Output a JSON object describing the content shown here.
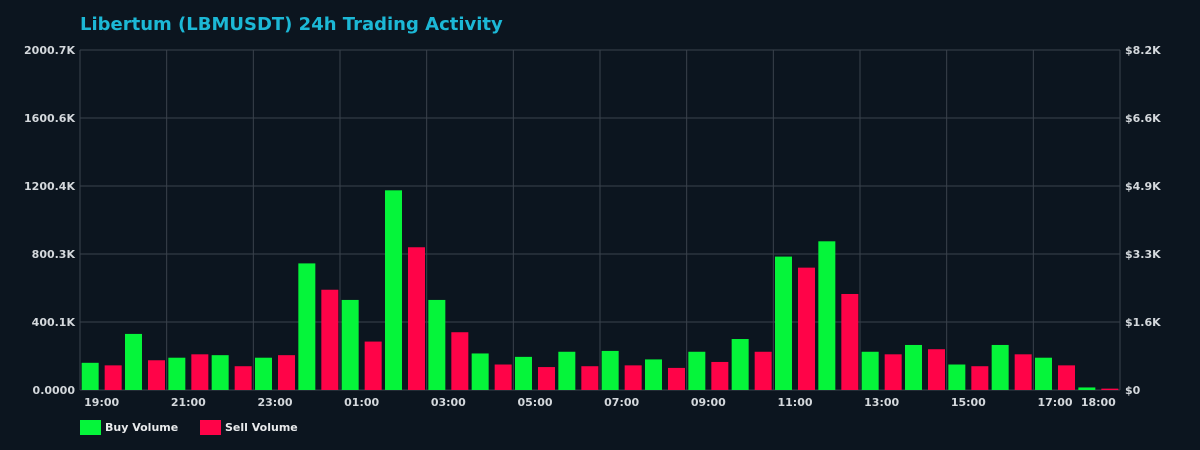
{
  "chart_data": {
    "type": "bar",
    "title": "Libertum (LBMUSDT) 24h Trading Activity",
    "y_left_ticks": [
      "0.0000",
      "400.1K",
      "800.3K",
      "1200.4K",
      "1600.6K",
      "2000.7K"
    ],
    "y_right_ticks": [
      "$0",
      "$1.6K",
      "$3.3K",
      "$4.9K",
      "$6.6K",
      "$8.2K"
    ],
    "ylim": [
      0,
      2000.7
    ],
    "y_unit": "K",
    "x_tick_labels": [
      "19:00",
      "21:00",
      "23:00",
      "01:00",
      "03:00",
      "05:00",
      "07:00",
      "09:00",
      "11:00",
      "13:00",
      "15:00",
      "17:00",
      "18:00"
    ],
    "x_tick_hours": [
      0,
      2,
      4,
      6,
      8,
      10,
      12,
      14,
      16,
      18,
      20,
      22,
      23
    ],
    "grid": true,
    "legend_position": "bottom-left",
    "series": [
      {
        "name": "Buy Volume",
        "color": "#05f53a",
        "values": [
          160,
          330,
          190,
          205,
          190,
          745,
          530,
          1175,
          530,
          215,
          195,
          225,
          230,
          180,
          225,
          300,
          785,
          875,
          225,
          265,
          150,
          265,
          190,
          15
        ]
      },
      {
        "name": "Sell Volume",
        "color": "#ff0348",
        "values": [
          145,
          175,
          210,
          140,
          205,
          590,
          285,
          840,
          340,
          150,
          135,
          140,
          145,
          130,
          165,
          225,
          720,
          565,
          210,
          240,
          140,
          210,
          145,
          8
        ]
      }
    ]
  }
}
